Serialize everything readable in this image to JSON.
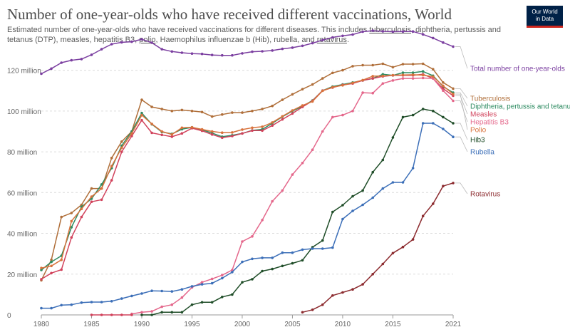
{
  "header": {
    "title": "Number of one-year-olds who have received different vaccinations, World",
    "subtitle_parts": [
      "Estimated number of one-year-olds who have received vaccinations for different diseases. This includes ",
      "tuberculosis",
      ", diphtheria, pertussis and tetanus (DTP), measles, hepatitis B3, ",
      "polio",
      ", Haemophilus influenzae b (Hib), rubella, and ",
      "rotavirus",
      "."
    ],
    "logo_line1": "Our World",
    "logo_line2": "in Data"
  },
  "chart_data": {
    "type": "line",
    "ylim": [
      0,
      130
    ],
    "yticks": [
      0,
      20,
      40,
      60,
      80,
      100,
      120
    ],
    "ytick_labels": [
      "0",
      "20 million",
      "40 million",
      "60 million",
      "80 million",
      "100 million",
      "120 million"
    ],
    "xlim": [
      1980,
      2021
    ],
    "xticks": [
      1980,
      1985,
      1990,
      1995,
      2000,
      2005,
      2010,
      2015,
      2021
    ],
    "grid": true,
    "legend": "right-end labels",
    "series": [
      {
        "name": "Total number of one-year-olds",
        "color": "#7b3fa0",
        "x": [
          1980,
          1981,
          1982,
          1983,
          1984,
          1985,
          1986,
          1987,
          1988,
          1989,
          1990,
          1991,
          1992,
          1993,
          1994,
          1995,
          1996,
          1997,
          1998,
          1999,
          2000,
          2001,
          2002,
          2003,
          2004,
          2005,
          2006,
          2007,
          2008,
          2009,
          2010,
          2011,
          2012,
          2013,
          2014,
          2015,
          2016,
          2017,
          2018,
          2019,
          2020,
          2021
        ],
        "values": [
          118.3,
          120.8,
          123.7,
          124.9,
          125.5,
          127.6,
          130.3,
          132.8,
          133.7,
          134,
          135.2,
          133.5,
          130.3,
          129.2,
          128.6,
          128.2,
          128,
          127.5,
          127.3,
          127.3,
          128.3,
          129.1,
          129.3,
          129.7,
          130.5,
          131.1,
          132,
          133.3,
          134.8,
          136.1,
          136.9,
          137.5,
          138.9,
          139.4,
          139.1,
          138.9,
          139,
          139,
          137.6,
          135.8,
          133.6,
          131.6
        ]
      },
      {
        "name": "Tuberculosis",
        "color": "#b06f3a",
        "x": [
          1980,
          1981,
          1982,
          1983,
          1984,
          1985,
          1986,
          1987,
          1988,
          1989,
          1990,
          1991,
          1992,
          1993,
          1994,
          1995,
          1996,
          1997,
          1998,
          1999,
          2000,
          2001,
          2002,
          2003,
          2004,
          2005,
          2006,
          2007,
          2008,
          2009,
          2010,
          2011,
          2012,
          2013,
          2014,
          2015,
          2016,
          2017,
          2018,
          2019,
          2020,
          2021
        ],
        "values": [
          17,
          27,
          48,
          50,
          54,
          62,
          62,
          77,
          85,
          90,
          105.5,
          102,
          101,
          100,
          100.5,
          100,
          99.5,
          97.3,
          98.3,
          99.2,
          99.2,
          100,
          101,
          102.5,
          105.5,
          108.2,
          110.7,
          113,
          116,
          118.7,
          120,
          122,
          122.5,
          122.5,
          123.2,
          121.5,
          123,
          123,
          123.2,
          120.5,
          114,
          111
        ]
      },
      {
        "name": "Diphtheria, pertussis and tetanus",
        "color": "#2d8b61",
        "x": [
          1980,
          1981,
          1982,
          1983,
          1984,
          1985,
          1986,
          1987,
          1988,
          1989,
          1990,
          1991,
          1992,
          1993,
          1994,
          1995,
          1996,
          1997,
          1998,
          1999,
          2000,
          2001,
          2002,
          2003,
          2004,
          2005,
          2006,
          2007,
          2008,
          2009,
          2010,
          2011,
          2012,
          2013,
          2014,
          2015,
          2016,
          2017,
          2018,
          2019,
          2020,
          2021
        ],
        "values": [
          22,
          26,
          29,
          43,
          53,
          57,
          64,
          72,
          83,
          90,
          99,
          93.5,
          89.7,
          88.8,
          91.1,
          92,
          90.8,
          89.2,
          87.4,
          88.1,
          89,
          90.5,
          91,
          94,
          97.2,
          100,
          102.3,
          105.2,
          110,
          112,
          113,
          114,
          115,
          116,
          118,
          117.5,
          118.8,
          118.8,
          119.4,
          117.3,
          112,
          109
        ]
      },
      {
        "name": "Measles",
        "color": "#d1425b",
        "x": [
          1980,
          1981,
          1982,
          1983,
          1984,
          1985,
          1986,
          1987,
          1988,
          1989,
          1990,
          1991,
          1992,
          1993,
          1994,
          1995,
          1996,
          1997,
          1998,
          1999,
          2000,
          2001,
          2002,
          2003,
          2004,
          2005,
          2006,
          2007,
          2008,
          2009,
          2010,
          2011,
          2012,
          2013,
          2014,
          2015,
          2016,
          2017,
          2018,
          2019,
          2020,
          2021
        ],
        "values": [
          17.5,
          20.5,
          22.2,
          38,
          48,
          55.5,
          56.5,
          66,
          80,
          87.7,
          95.5,
          89.3,
          88.3,
          87.4,
          89,
          91.6,
          90.3,
          88.5,
          86.9,
          87.7,
          89,
          90.4,
          90.4,
          92.9,
          95.9,
          98.8,
          102,
          105,
          110,
          111.5,
          112.8,
          113.5,
          115,
          116,
          117,
          117.5,
          117.5,
          117.5,
          118,
          116,
          111,
          107.5
        ]
      },
      {
        "name": "Hepatitis B3",
        "color": "#e4678b",
        "x": [
          1989,
          1990,
          1991,
          1992,
          1993,
          1994,
          1995,
          1996,
          1997,
          1998,
          1999,
          2000,
          2001,
          2002,
          2003,
          2004,
          2005,
          2006,
          2007,
          2008,
          2009,
          2010,
          2011,
          2012,
          2013,
          2014,
          2015,
          2016,
          2017,
          2018,
          2019,
          2020,
          2021
        ],
        "values": [
          0.5,
          1.3,
          1.7,
          4,
          5,
          8.5,
          13.5,
          16,
          17.7,
          19.5,
          22,
          36,
          38.5,
          46.5,
          55.7,
          61,
          68.8,
          74.5,
          81,
          90,
          97,
          98,
          100,
          109,
          108.8,
          113.5,
          115,
          116,
          116,
          116.2,
          116,
          110,
          105
        ]
      },
      {
        "name": "Polio",
        "color": "#d8723c",
        "x": [
          1980,
          1981,
          1982,
          1983,
          1984,
          1985,
          1986,
          1987,
          1988,
          1989,
          1990,
          1991,
          1992,
          1993,
          1994,
          1995,
          1996,
          1997,
          1998,
          1999,
          2000,
          2001,
          2002,
          2003,
          2004,
          2005,
          2006,
          2007,
          2008,
          2009,
          2010,
          2011,
          2012,
          2013,
          2014,
          2015,
          2016,
          2017,
          2018,
          2019,
          2020,
          2021
        ],
        "values": [
          23,
          24,
          27,
          46,
          52,
          58,
          62,
          73,
          82,
          89,
          98,
          93.7,
          90,
          88.5,
          91.8,
          92,
          91,
          90,
          89.4,
          89.5,
          90.9,
          91.8,
          92.3,
          94.4,
          97.4,
          100.3,
          102.7,
          104.7,
          109.9,
          111.7,
          112.6,
          113.8,
          115.2,
          117.1,
          117.2,
          117.6,
          117.7,
          117.8,
          117.6,
          116.9,
          112.4,
          108.3
        ]
      },
      {
        "name": "Hib3",
        "color": "#1f4d28",
        "x": [
          1990,
          1991,
          1992,
          1993,
          1994,
          1995,
          1996,
          1997,
          1998,
          1999,
          2000,
          2001,
          2002,
          2003,
          2004,
          2005,
          2006,
          2007,
          2008,
          2009,
          2010,
          2011,
          2012,
          2013,
          2014,
          2015,
          2016,
          2017,
          2018,
          2019,
          2020,
          2021
        ],
        "values": [
          0,
          0,
          1.3,
          1.3,
          1.3,
          5,
          6.2,
          6.2,
          8.8,
          10,
          16,
          17.5,
          21.5,
          22.5,
          24,
          25.3,
          26.8,
          33.2,
          36.5,
          50.5,
          53.8,
          58.2,
          61,
          70,
          76,
          87,
          97,
          98,
          101,
          100,
          97,
          94
        ]
      },
      {
        "name": "Rubella",
        "color": "#3c6fb8",
        "x": [
          1980,
          1981,
          1982,
          1983,
          1984,
          1985,
          1986,
          1987,
          1988,
          1989,
          1990,
          1991,
          1992,
          1993,
          1994,
          1995,
          1996,
          1997,
          1998,
          1999,
          2000,
          2001,
          2002,
          2003,
          2004,
          2005,
          2006,
          2007,
          2008,
          2009,
          2010,
          2011,
          2012,
          2013,
          2014,
          2015,
          2016,
          2017,
          2018,
          2019,
          2020,
          2021
        ],
        "values": [
          3.3,
          3.3,
          4.8,
          5,
          6,
          6.3,
          6.3,
          6.7,
          8,
          9.3,
          10.5,
          11.8,
          11.7,
          11.5,
          12.5,
          14,
          15,
          15.5,
          18,
          21,
          26,
          27.5,
          28,
          28,
          30.5,
          30.5,
          32,
          32.5,
          32.5,
          33,
          47,
          51,
          54,
          57.5,
          62,
          65,
          65,
          72,
          94,
          94,
          91.2,
          87.3
        ]
      },
      {
        "name": "Rotavirus",
        "color": "#8c2b2f",
        "x": [
          2006,
          2007,
          2008,
          2009,
          2010,
          2011,
          2012,
          2013,
          2014,
          2015,
          2016,
          2017,
          2018,
          2019,
          2020,
          2021
        ],
        "values": [
          1.3,
          2.5,
          5,
          9.5,
          11,
          12.5,
          15,
          20,
          25,
          30.3,
          33.3,
          37,
          48.5,
          54.5,
          63.2,
          64.7
        ]
      },
      {
        "name": "",
        "color": "#d1425b",
        "x": [
          1985,
          1986,
          1987,
          1988,
          1989
        ],
        "values": [
          0,
          0,
          0,
          0,
          0
        ]
      }
    ]
  }
}
